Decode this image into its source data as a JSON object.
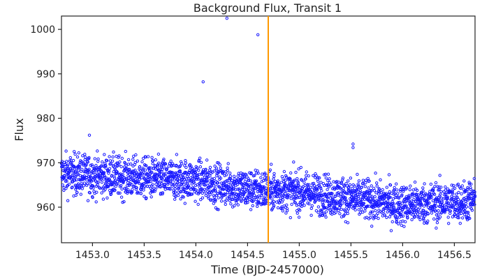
{
  "chart_data": {
    "type": "scatter",
    "title": "Background Flux, Transit 1",
    "xlabel": "Time (BJD-2457000)",
    "ylabel": "Flux",
    "xlim": [
      1452.7,
      1456.7
    ],
    "ylim": [
      952,
      1003
    ],
    "x_ticks": [
      1453.0,
      1453.5,
      1454.0,
      1454.5,
      1455.0,
      1455.5,
      1456.0,
      1456.5
    ],
    "x_tick_labels": [
      "1453.0",
      "1453.5",
      "1454.0",
      "1454.5",
      "1455.0",
      "1455.5",
      "1456.0",
      "1456.5"
    ],
    "y_ticks": [
      960,
      970,
      980,
      990,
      1000
    ],
    "y_tick_labels": [
      "960",
      "970",
      "980",
      "990",
      "1000"
    ],
    "grid": false,
    "marker_color": "#1a1aff",
    "vline": {
      "x": 1454.7,
      "color": "#ff9900"
    },
    "trend": [
      {
        "x": 1452.7,
        "y": 967.5
      },
      {
        "x": 1453.5,
        "y": 966.5
      },
      {
        "x": 1454.0,
        "y": 966.0
      },
      {
        "x": 1454.5,
        "y": 964.0
      },
      {
        "x": 1455.0,
        "y": 963.5
      },
      {
        "x": 1455.5,
        "y": 962.0
      },
      {
        "x": 1456.0,
        "y": 960.5
      },
      {
        "x": 1456.7,
        "y": 961.5
      }
    ],
    "scatter_halfwidth": 4.5,
    "outliers": [
      {
        "x": 1454.07,
        "y": 988.2
      },
      {
        "x": 1454.3,
        "y": 1002.5
      },
      {
        "x": 1454.6,
        "y": 998.8
      },
      {
        "x": 1455.52,
        "y": 974.2
      },
      {
        "x": 1455.52,
        "y": 973.4
      },
      {
        "x": 1452.97,
        "y": 976.2
      }
    ]
  }
}
